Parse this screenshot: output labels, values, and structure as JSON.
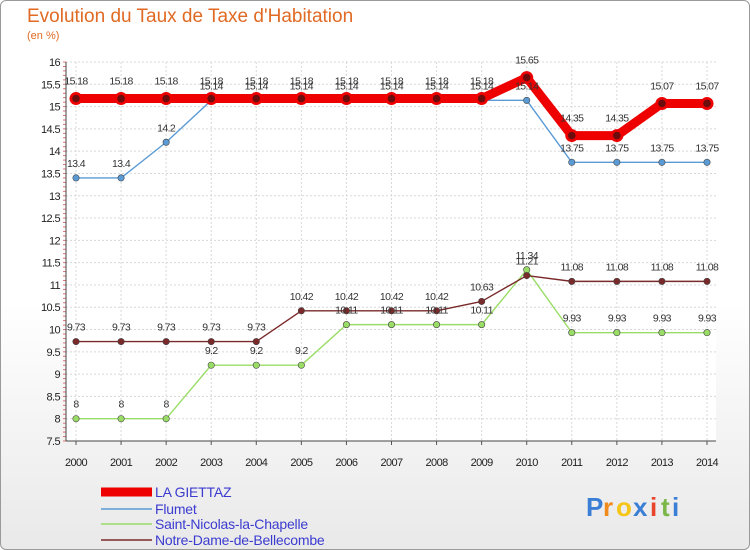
{
  "chart_data": {
    "type": "line",
    "title": "Evolution du Taux de Taxe d'Habitation",
    "subtitle": "(en %)",
    "xlabel": "",
    "ylabel": "(en %)",
    "ylim": [
      7.5,
      16
    ],
    "ytick_step": 0.5,
    "yticks": [
      "7.5",
      "8",
      "8.5",
      "9",
      "9.5",
      "10",
      "10.5",
      "11",
      "11.5",
      "12",
      "12.5",
      "13",
      "13.5",
      "14",
      "14.5",
      "15",
      "15.5",
      "16"
    ],
    "categories": [
      "2000",
      "2001",
      "2002",
      "2003",
      "2004",
      "2005",
      "2006",
      "2007",
      "2008",
      "2009",
      "2010",
      "2011",
      "2012",
      "2013",
      "2014"
    ],
    "grid": true,
    "legend_position": "bottom-left",
    "series": [
      {
        "name": "LA GIETTAZ",
        "color": "#ee0000",
        "values": [
          15.18,
          15.18,
          15.18,
          15.18,
          15.18,
          15.18,
          15.18,
          15.18,
          15.18,
          15.18,
          15.65,
          14.35,
          14.35,
          15.07,
          15.07
        ],
        "labels": [
          "15.18",
          "15.18",
          "15.18",
          "15.18",
          "15.18",
          "15.18",
          "15.18",
          "15.18",
          "15.18",
          "15.18",
          "15.65",
          "14.35",
          "14.35",
          "15.07",
          "15.07"
        ]
      },
      {
        "name": "Flumet",
        "color": "#5b9bd5",
        "values": [
          13.4,
          13.4,
          14.2,
          15.14,
          15.14,
          15.14,
          15.14,
          15.14,
          15.14,
          15.14,
          15.14,
          13.75,
          13.75,
          13.75,
          13.75
        ],
        "labels": [
          "13.4",
          "13.4",
          "14.2",
          "15.14",
          "15.14",
          "15.14",
          "15.14",
          "15.14",
          "15.14",
          "15.14",
          "15.14",
          "13.75",
          "13.75",
          "13.75",
          "13.75"
        ]
      },
      {
        "name": "Saint-Nicolas-la-Chapelle",
        "color": "#99dd66",
        "values": [
          8,
          8,
          8,
          9.2,
          9.2,
          9.2,
          10.11,
          10.11,
          10.11,
          10.11,
          11.34,
          9.93,
          9.93,
          9.93,
          9.93
        ],
        "labels": [
          "8",
          "8",
          "8",
          "9.2",
          "9.2",
          "9.2",
          "10.11",
          "10.11",
          "10.11",
          "10.11",
          "11.34",
          "9.93",
          "9.93",
          "9.93",
          "9.93"
        ]
      },
      {
        "name": "Notre-Dame-de-Bellecombe",
        "color": "#7a2a2a",
        "values": [
          9.73,
          9.73,
          9.73,
          9.73,
          9.73,
          10.42,
          10.42,
          10.42,
          10.42,
          10.63,
          11.21,
          11.08,
          11.08,
          11.08,
          11.08
        ],
        "labels": [
          "9.73",
          "9.73",
          "9.73",
          "9.73",
          "9.73",
          "10.42",
          "10.42",
          "10.42",
          "10.42",
          "10.63",
          "11.21",
          "11.08",
          "11.08",
          "11.08",
          "11.08"
        ]
      }
    ]
  },
  "logo": {
    "letters": [
      "P",
      "r",
      "o",
      "x",
      "i",
      "t",
      "i"
    ],
    "colors": [
      "#3a7fd5",
      "#f08a1c",
      "#f5c518",
      "#3a7fd5",
      "#e8452c",
      "#7ab648",
      "#3a7fd5"
    ]
  }
}
